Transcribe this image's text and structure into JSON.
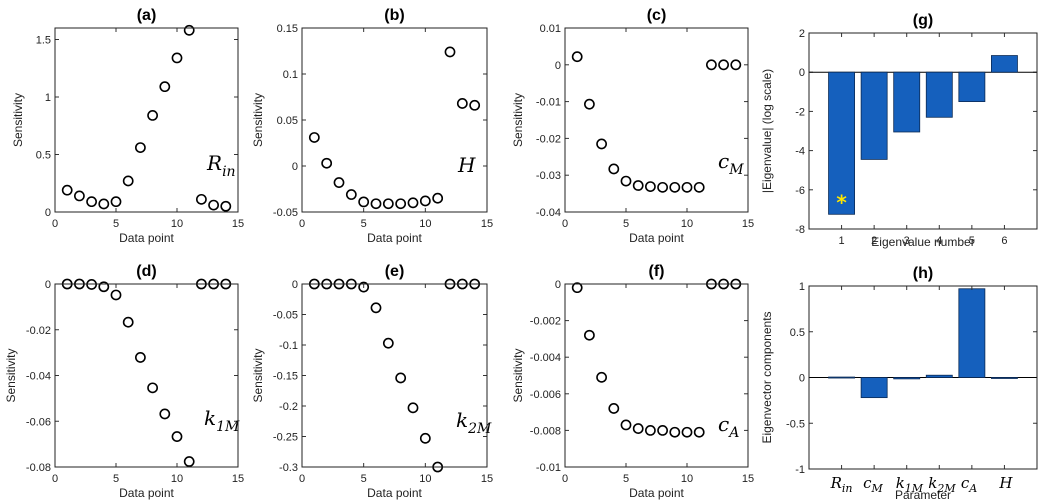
{
  "chart_data": [
    {
      "id": "a",
      "type": "scatter",
      "title": "(a)",
      "xlabel": "Data point",
      "ylabel": "Sensitivity",
      "xlim": [
        0,
        15
      ],
      "ylim": [
        0,
        1.6
      ],
      "xticks": [
        0,
        5,
        10,
        15
      ],
      "xtick_labels": [
        "0",
        "5",
        "10",
        "15"
      ],
      "yticks": [
        0,
        0.5,
        1,
        1.5
      ],
      "ytick_labels": [
        "0",
        "0.5",
        "1",
        "1.5"
      ],
      "annotation": {
        "main": "R",
        "sub": "in"
      },
      "x": [
        1,
        2,
        3,
        4,
        5,
        6,
        7,
        8,
        9,
        10,
        11,
        12,
        13,
        14
      ],
      "y": [
        0.19,
        0.14,
        0.09,
        0.07,
        0.09,
        0.27,
        0.56,
        0.84,
        1.09,
        1.34,
        1.58,
        0.11,
        0.06,
        0.05
      ]
    },
    {
      "id": "b",
      "type": "scatter",
      "title": "(b)",
      "xlabel": "Data point",
      "ylabel": "Sensitivity",
      "xlim": [
        0,
        15
      ],
      "ylim": [
        -0.05,
        0.15
      ],
      "xticks": [
        0,
        5,
        10,
        15
      ],
      "xtick_labels": [
        "0",
        "5",
        "10",
        "15"
      ],
      "yticks": [
        -0.05,
        0,
        0.05,
        0.1,
        0.15
      ],
      "ytick_labels": [
        "-0.05",
        "0",
        "0.05",
        "0.1",
        "0.15"
      ],
      "annotation": {
        "main": "H",
        "sub": ""
      },
      "x": [
        1,
        2,
        3,
        4,
        5,
        6,
        7,
        8,
        9,
        10,
        11,
        12,
        13,
        14
      ],
      "y": [
        0.031,
        0.003,
        -0.018,
        -0.031,
        -0.039,
        -0.041,
        -0.041,
        -0.041,
        -0.04,
        -0.038,
        -0.035,
        0.124,
        0.068,
        0.066
      ]
    },
    {
      "id": "c",
      "type": "scatter",
      "title": "(c)",
      "xlabel": "Data point",
      "ylabel": "Sensitivity",
      "xlim": [
        0,
        15
      ],
      "ylim": [
        -0.04,
        0.01
      ],
      "xticks": [
        0,
        5,
        10,
        15
      ],
      "xtick_labels": [
        "0",
        "5",
        "10",
        "15"
      ],
      "yticks": [
        -0.04,
        -0.03,
        -0.02,
        -0.01,
        0,
        0.01
      ],
      "ytick_labels": [
        "-0.04",
        "-0.03",
        "-0.02",
        "-0.01",
        "0",
        "0.01"
      ],
      "annotation": {
        "main": "c",
        "sub": "M"
      },
      "x": [
        1,
        2,
        3,
        4,
        5,
        6,
        7,
        8,
        9,
        10,
        11,
        12,
        13,
        14
      ],
      "y": [
        0.0022,
        -0.0107,
        -0.0215,
        -0.0283,
        -0.0316,
        -0.0328,
        -0.0331,
        -0.0333,
        -0.0333,
        -0.0333,
        -0.0333,
        0,
        0,
        0
      ]
    },
    {
      "id": "g",
      "type": "bar",
      "title": "(g)",
      "xlabel": "Eigenvalue number",
      "ylabel": "|Eigenvalue| (log scale)",
      "ylim": [
        -8,
        2
      ],
      "yticks": [
        -8,
        -6,
        -4,
        -2,
        0,
        2
      ],
      "ytick_labels": [
        "-8",
        "-6",
        "-4",
        "-2",
        "0",
        "2"
      ],
      "categories": [
        "1",
        "2",
        "3",
        "4",
        "5",
        "6"
      ],
      "values": [
        -7.25,
        -4.45,
        -3.05,
        -2.3,
        -1.5,
        0.85
      ],
      "marker": {
        "category_index": 0,
        "value": -6.6,
        "symbol": "*",
        "color": "#ffe600"
      },
      "bar_color": "#1560bd"
    },
    {
      "id": "d",
      "type": "scatter",
      "title": "(d)",
      "xlabel": "Data point",
      "ylabel": "Sensitivity",
      "xlim": [
        0,
        15
      ],
      "ylim": [
        -0.08,
        0
      ],
      "xticks": [
        0,
        5,
        10,
        15
      ],
      "xtick_labels": [
        "0",
        "5",
        "10",
        "15"
      ],
      "yticks": [
        -0.08,
        -0.06,
        -0.04,
        -0.02,
        0
      ],
      "ytick_labels": [
        "-0.08",
        "-0.06",
        "-0.04",
        "-0.02",
        "0"
      ],
      "annotation": {
        "main": "k",
        "sub": "1M"
      },
      "x": [
        1,
        2,
        3,
        4,
        5,
        6,
        7,
        8,
        9,
        10,
        11,
        12,
        13,
        14
      ],
      "y": [
        0,
        0,
        -0.0002,
        -0.0012,
        -0.0048,
        -0.0167,
        -0.0321,
        -0.0454,
        -0.0568,
        -0.0667,
        -0.0776,
        0,
        0,
        0
      ]
    },
    {
      "id": "e",
      "type": "scatter",
      "title": "(e)",
      "xlabel": "Data point",
      "ylabel": "Sensitivity",
      "xlim": [
        0,
        15
      ],
      "ylim": [
        -0.3,
        0
      ],
      "xticks": [
        0,
        5,
        10,
        15
      ],
      "xtick_labels": [
        "0",
        "5",
        "10",
        "15"
      ],
      "yticks": [
        -0.3,
        -0.25,
        -0.2,
        -0.15,
        -0.1,
        -0.05,
        0
      ],
      "ytick_labels": [
        "-0.3",
        "-0.25",
        "-0.2",
        "-0.15",
        "-0.1",
        "-0.05",
        "0"
      ],
      "annotation": {
        "main": "k",
        "sub": "2M"
      },
      "x": [
        1,
        2,
        3,
        4,
        5,
        6,
        7,
        8,
        9,
        10,
        11,
        12,
        13,
        14
      ],
      "y": [
        0,
        0,
        0,
        0,
        -0.005,
        -0.039,
        -0.097,
        -0.154,
        -0.203,
        -0.253,
        -0.3,
        0,
        0,
        0
      ]
    },
    {
      "id": "f",
      "type": "scatter",
      "title": "(f)",
      "xlabel": "Data point",
      "ylabel": "Sensitivity",
      "xlim": [
        0,
        15
      ],
      "ylim": [
        -0.01,
        0
      ],
      "xticks": [
        0,
        5,
        10,
        15
      ],
      "xtick_labels": [
        "0",
        "5",
        "10",
        "15"
      ],
      "yticks": [
        -0.01,
        -0.008,
        -0.006,
        -0.004,
        -0.002,
        0
      ],
      "ytick_labels": [
        "-0.01",
        "-0.008",
        "-0.006",
        "-0.004",
        "-0.002",
        "0"
      ],
      "annotation": {
        "main": "c",
        "sub": "A"
      },
      "x": [
        1,
        2,
        3,
        4,
        5,
        6,
        7,
        8,
        9,
        10,
        11,
        12,
        13,
        14
      ],
      "y": [
        -0.0002,
        -0.0028,
        -0.0051,
        -0.0068,
        -0.0077,
        -0.0079,
        -0.008,
        -0.008,
        -0.0081,
        -0.0081,
        -0.0081,
        0,
        0,
        0
      ]
    },
    {
      "id": "h",
      "type": "bar",
      "title": "(h)",
      "xlabel": "Parameter",
      "ylabel": "Eigenvector components",
      "ylim": [
        -1,
        1
      ],
      "yticks": [
        -1,
        -0.5,
        0,
        0.5,
        1
      ],
      "ytick_labels": [
        "-1",
        "-0.5",
        "0",
        "0.5",
        "1"
      ],
      "categories": [
        {
          "main": "R",
          "sub": "in"
        },
        {
          "main": "c",
          "sub": "M"
        },
        {
          "main": "k",
          "sub": "1M"
        },
        {
          "main": "k",
          "sub": "2M"
        },
        {
          "main": "c",
          "sub": "A"
        },
        {
          "main": "H",
          "sub": ""
        }
      ],
      "values": [
        0.005,
        -0.22,
        -0.015,
        0.025,
        0.97,
        -0.01
      ],
      "bar_color": "#1560bd"
    }
  ]
}
